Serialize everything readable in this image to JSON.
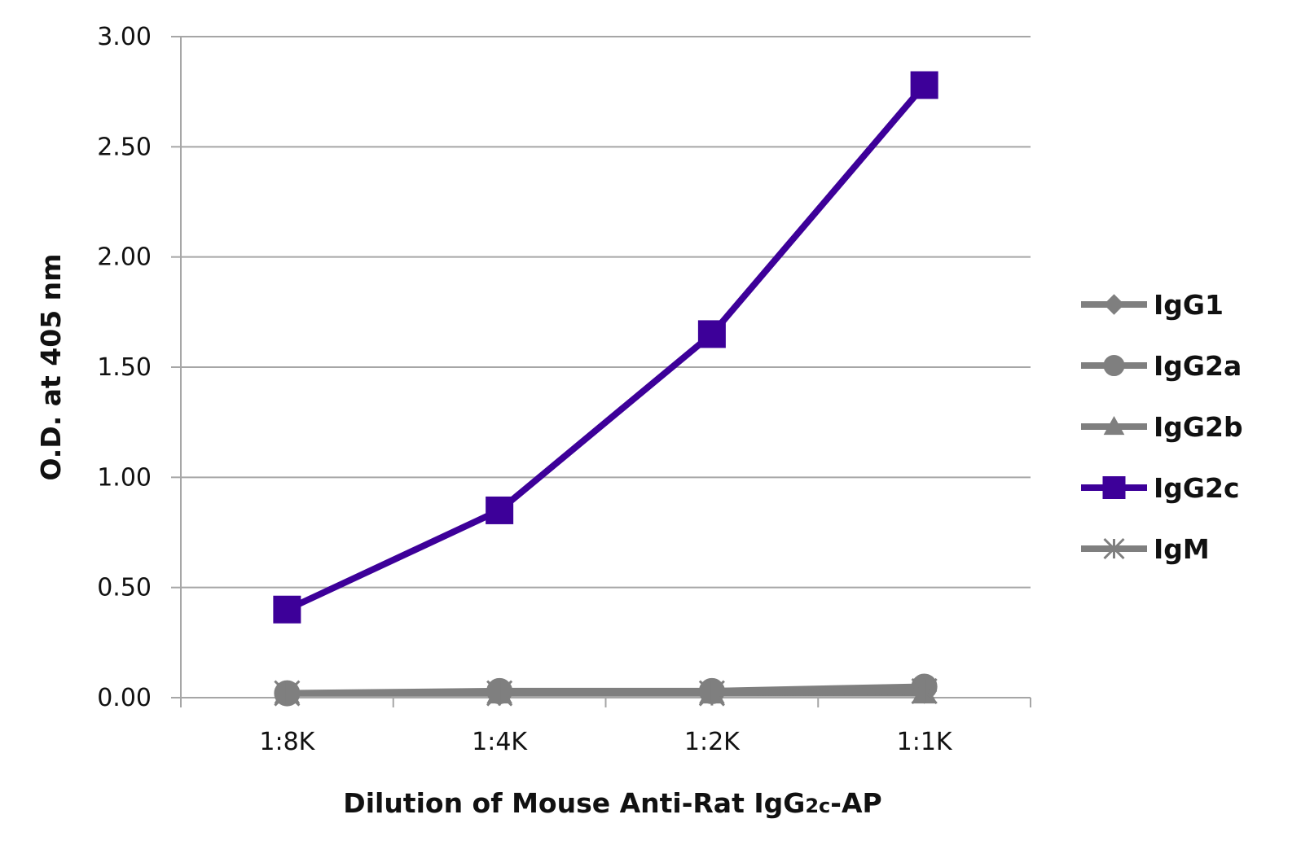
{
  "chart_data": {
    "type": "line",
    "title": "",
    "xlabel": "Dilution of Mouse Anti-Rat IgG",
    "xlabel_subscript": "2c",
    "xlabel_suffix": "-AP",
    "ylabel": "O.D. at 405 nm",
    "categories": [
      "1:8K",
      "1:4K",
      "1:2K",
      "1:1K"
    ],
    "yticks": [
      "0.00",
      "0.50",
      "1.00",
      "1.50",
      "2.00",
      "2.50",
      "3.00"
    ],
    "ylim": [
      0,
      3
    ],
    "grid": true,
    "legend_position": "right",
    "series": [
      {
        "name": "IgG1",
        "marker": "diamond",
        "color": "#7f7f7f",
        "values": [
          0.02,
          0.02,
          0.03,
          0.03
        ]
      },
      {
        "name": "IgG2a",
        "marker": "circle",
        "color": "#7f7f7f",
        "values": [
          0.02,
          0.03,
          0.03,
          0.05
        ]
      },
      {
        "name": "IgG2b",
        "marker": "triangle",
        "color": "#7f7f7f",
        "values": [
          0.02,
          0.02,
          0.02,
          0.02
        ]
      },
      {
        "name": "IgG2c",
        "marker": "square",
        "color": "#3d0099",
        "values": [
          0.4,
          0.85,
          1.65,
          2.78
        ]
      },
      {
        "name": "IgM",
        "marker": "star",
        "color": "#7f7f7f",
        "values": [
          0.02,
          0.02,
          0.02,
          0.03
        ]
      }
    ]
  }
}
